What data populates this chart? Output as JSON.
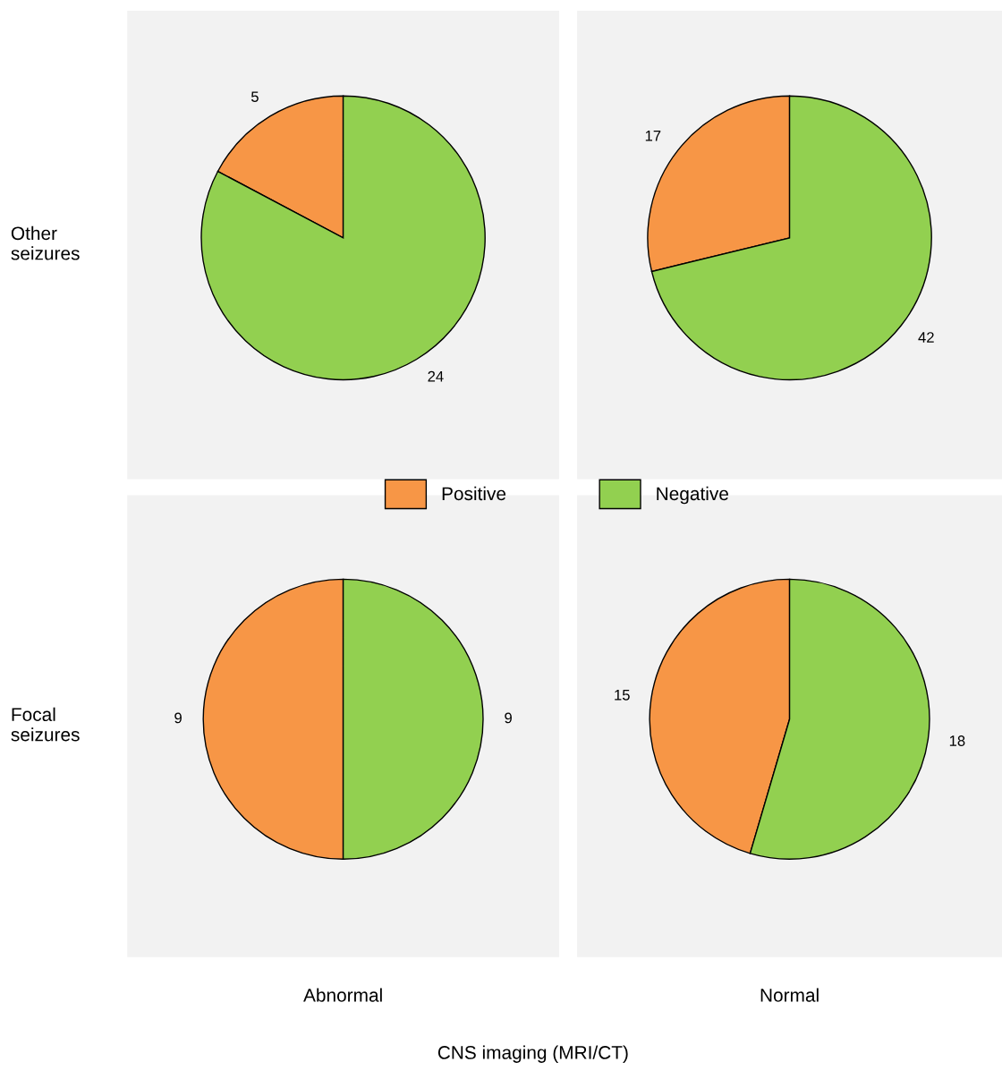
{
  "chart_data": [
    {
      "type": "pie",
      "ylabel": "Other\nseizures",
      "categories": [
        "Positive",
        "Negative"
      ],
      "values": [
        5,
        24
      ],
      "colors": [
        "#f79646",
        "#92d050"
      ],
      "data_labels": true,
      "legend": "bottom"
    },
    {
      "type": "pie",
      "categories": [
        null,
        null
      ],
      "values": [
        17,
        42
      ],
      "colors": [
        "#f79646",
        "#92d050"
      ],
      "data_labels": true
    },
    {
      "type": "pie",
      "ylabel": "Focal\nseizures",
      "xlabel": "Abnormal",
      "categories": [
        null,
        null
      ],
      "values": [
        9,
        9
      ],
      "colors": [
        "#f79646",
        "#92d050"
      ],
      "data_labels": true,
      "annotations": [
        "CNS imaging (MRI/CT)"
      ]
    },
    {
      "type": "pie",
      "xlabel": "Normal",
      "categories": [
        null,
        null
      ],
      "values": [
        15,
        18
      ],
      "colors": [
        "#f79646",
        "#92d050"
      ],
      "data_labels": true
    }
  ]
}
